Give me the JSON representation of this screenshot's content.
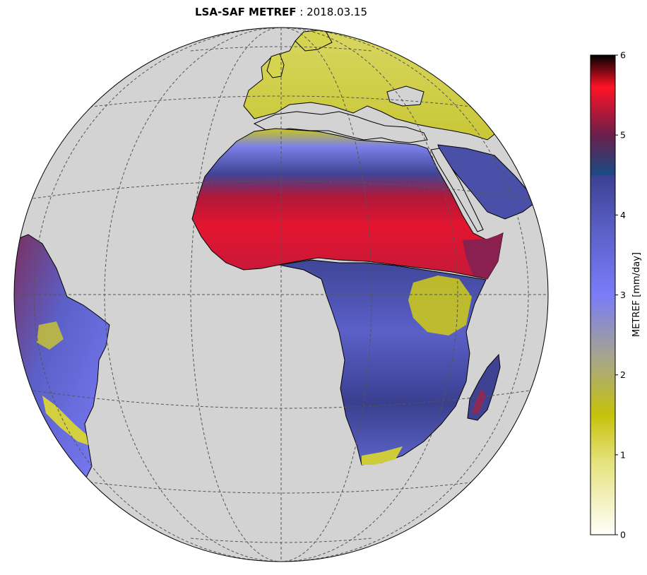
{
  "title": {
    "product": "LSA-SAF METREF",
    "separator": " : ",
    "date": "2018.03.15"
  },
  "colorbar": {
    "label": "METREF [mm/day]",
    "min": 0,
    "max": 6,
    "ticks": [
      "0",
      "1",
      "2",
      "3",
      "4",
      "5",
      "6"
    ],
    "stops": [
      {
        "v": 0.0,
        "c": "#fefefa"
      },
      {
        "v": 0.9,
        "c": "#e6e37e"
      },
      {
        "v": 1.5,
        "c": "#c6c20a"
      },
      {
        "v": 2.2,
        "c": "#a7a68a"
      },
      {
        "v": 3.0,
        "c": "#7a7cf8"
      },
      {
        "v": 3.8,
        "c": "#5b60c8"
      },
      {
        "v": 4.49,
        "c": "#3c4191"
      },
      {
        "v": 4.5,
        "c": "#1a4a85"
      },
      {
        "v": 5.0,
        "c": "#6a1f4a"
      },
      {
        "v": 5.6,
        "c": "#ff1226"
      },
      {
        "v": 6.0,
        "c": "#000000"
      }
    ]
  },
  "map": {
    "projection": "orthographic",
    "ocean_color": "#d3d3d3",
    "gridline_color": "#555555"
  }
}
